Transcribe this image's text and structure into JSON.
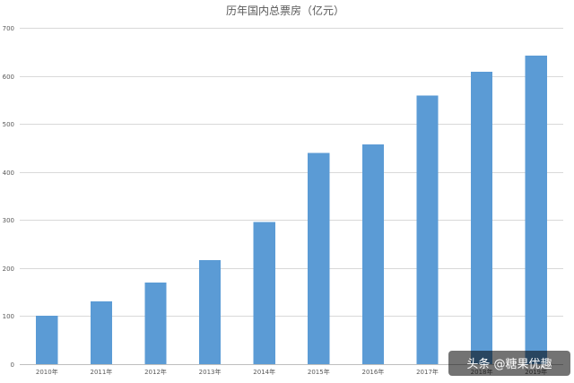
{
  "chart_data": {
    "type": "bar",
    "title": "历年国内总票房（亿元）",
    "xlabel": "",
    "ylabel": "",
    "categories": [
      "2010年",
      "2011年",
      "2012年",
      "2013年",
      "2014年",
      "2015年",
      "2016年",
      "2017年",
      "2018年",
      "2019年"
    ],
    "values": [
      101,
      131,
      170,
      217,
      296,
      440,
      457,
      559,
      609,
      642
    ],
    "ylim": [
      0,
      700
    ],
    "yticks": [
      "0",
      "100",
      "200",
      "300",
      "400",
      "500",
      "600",
      "700"
    ],
    "grid": true,
    "legend": "none",
    "bar_color": "#5b9bd5"
  },
  "watermark": "头条 @糖果优趣"
}
